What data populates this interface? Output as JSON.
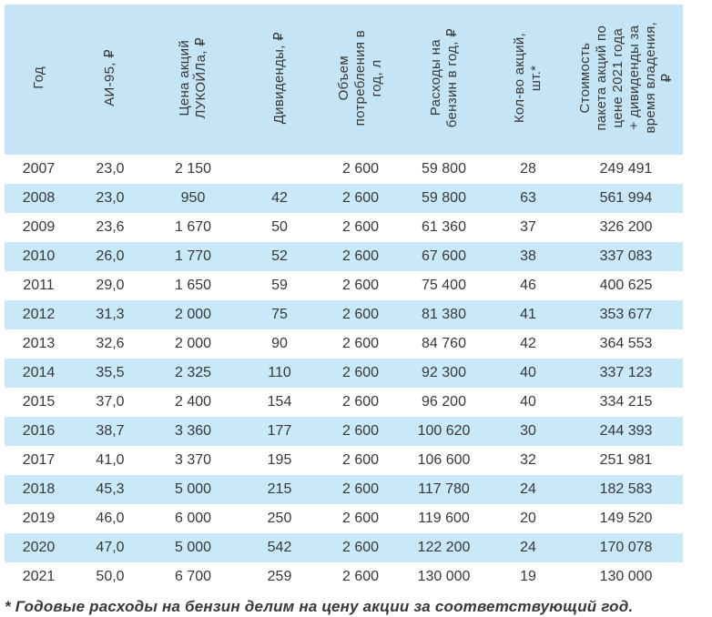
{
  "chart_data": {
    "type": "table",
    "columns": [
      "Год",
      "АИ-95, ₽",
      "Цена акций\nЛУКОЙЛа, ₽",
      "Дивиденды, ₽",
      "Объем\nпотребления в\nгод, л",
      "Расходы на\nбензин в год, ₽",
      "Кол-во акций,\nшт.*",
      "Стоимость\nпакета акций по\nцене 2021 года\n+ дивиденды за\nвремя владения,\n₽"
    ],
    "rows": [
      [
        "2007",
        "23,0",
        "2 150",
        "",
        "2 600",
        "59 800",
        "28",
        "249 491"
      ],
      [
        "2008",
        "23,0",
        "950",
        "42",
        "2 600",
        "59 800",
        "63",
        "561 994"
      ],
      [
        "2009",
        "23,6",
        "1 670",
        "50",
        "2 600",
        "61 360",
        "37",
        "326 200"
      ],
      [
        "2010",
        "26,0",
        "1 770",
        "52",
        "2 600",
        "67 600",
        "38",
        "337 083"
      ],
      [
        "2011",
        "29,0",
        "1 650",
        "59",
        "2 600",
        "75 400",
        "46",
        "400 625"
      ],
      [
        "2012",
        "31,3",
        "2 000",
        "75",
        "2 600",
        "81 380",
        "41",
        "353 677"
      ],
      [
        "2013",
        "32,6",
        "2 000",
        "90",
        "2 600",
        "84 760",
        "42",
        "364 553"
      ],
      [
        "2014",
        "35,5",
        "2 325",
        "110",
        "2 600",
        "92 300",
        "40",
        "337 123"
      ],
      [
        "2015",
        "37,0",
        "2 400",
        "154",
        "2 600",
        "96 200",
        "40",
        "334 215"
      ],
      [
        "2016",
        "38,7",
        "3 360",
        "177",
        "2 600",
        "100 620",
        "30",
        "244 393"
      ],
      [
        "2017",
        "41,0",
        "3 370",
        "195",
        "2 600",
        "106 600",
        "32",
        "251 981"
      ],
      [
        "2018",
        "45,3",
        "5 000",
        "215",
        "2 600",
        "117 780",
        "24",
        "182 583"
      ],
      [
        "2019",
        "46,0",
        "6 000",
        "250",
        "2 600",
        "119 600",
        "20",
        "149 520"
      ],
      [
        "2020",
        "47,0",
        "5 000",
        "542",
        "2 600",
        "122 200",
        "24",
        "170 078"
      ],
      [
        "2021",
        "50,0",
        "6 700",
        "259",
        "2 600",
        "130 000",
        "19",
        "130 000"
      ]
    ]
  },
  "footnote": "* Годовые расходы на бензин делим на цену акции за соответствующий год.",
  "colors": {
    "header_bg": "#c5e4f5",
    "stripe_bg": "#c9e8f8",
    "text": "#383838"
  }
}
